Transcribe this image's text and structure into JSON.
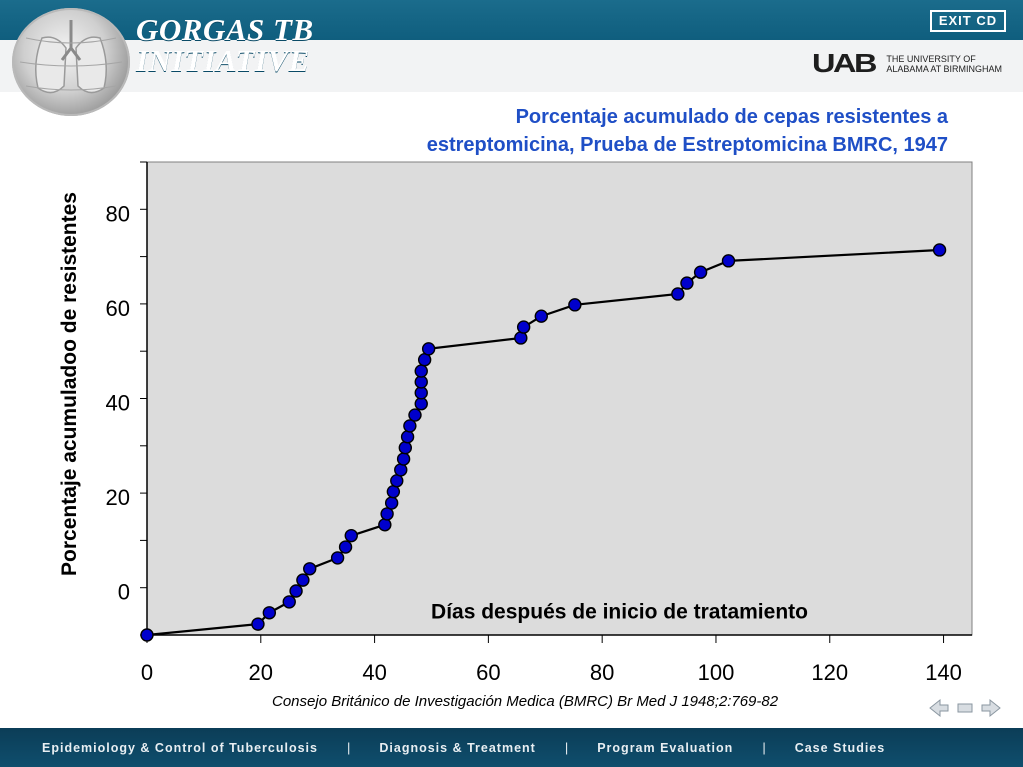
{
  "header": {
    "brand_line1": "GORGAS TB",
    "brand_line2": "INITIATIVE",
    "exit_label": "EXIT CD",
    "uab_mark": "UAB",
    "uab_name_line1": "THE UNIVERSITY OF",
    "uab_name_line2": "ALABAMA AT BIRMINGHAM"
  },
  "chart_data": {
    "type": "line",
    "title_line1": "Porcentaje acumulado de cepas resistentes a",
    "title_line2": "estreptomicina, Prueba de Estreptomicina BMRC, 1947",
    "xlabel": "Días después de inicio de tratamiento",
    "ylabel": "Porcentaje  acumuladoo de resistentes",
    "xlim": [
      0,
      145
    ],
    "ylim": [
      -7,
      93
    ],
    "x_ticks": [
      0,
      20,
      40,
      60,
      80,
      100,
      120,
      140
    ],
    "y_tick_labels": [
      0,
      20,
      40,
      60,
      80
    ],
    "grid": false,
    "marker_color": "#0000cc",
    "plot_background": "#dcdcdc",
    "series": [
      {
        "points": [
          [
            0,
            -7
          ],
          [
            19.5,
            -4.7
          ],
          [
            21.5,
            -2.3
          ],
          [
            25,
            0.0
          ],
          [
            26.2,
            2.3
          ],
          [
            27.4,
            4.6
          ],
          [
            28.6,
            7.0
          ],
          [
            33.5,
            9.3
          ],
          [
            34.9,
            11.6
          ],
          [
            35.9,
            14.0
          ],
          [
            41.8,
            16.3
          ],
          [
            42.2,
            18.6
          ],
          [
            43,
            20.9
          ],
          [
            43.3,
            23.3
          ],
          [
            43.9,
            25.6
          ],
          [
            44.6,
            27.9
          ],
          [
            45.1,
            30.2
          ],
          [
            45.4,
            32.6
          ],
          [
            45.8,
            34.9
          ],
          [
            46.2,
            37.2
          ],
          [
            47.1,
            39.5
          ],
          [
            48.2,
            41.9
          ],
          [
            48.2,
            44.2
          ],
          [
            48.2,
            46.5
          ],
          [
            48.2,
            48.8
          ],
          [
            48.8,
            51.2
          ],
          [
            49.5,
            53.5
          ],
          [
            65.7,
            55.8
          ],
          [
            66.2,
            58.1
          ],
          [
            69.3,
            60.4
          ],
          [
            75.2,
            62.8
          ],
          [
            93.3,
            65.1
          ],
          [
            94.9,
            67.4
          ],
          [
            97.3,
            69.7
          ],
          [
            102.2,
            72.1
          ],
          [
            139.3,
            74.4
          ]
        ]
      }
    ]
  },
  "citation": "Consejo Británico de Investigación Medica (BMRC) Br Med J 1948;2:769-82",
  "footer": {
    "nav": [
      "Epidemiology & Control of Tuberculosis",
      "Diagnosis & Treatment",
      "Program Evaluation",
      "Case Studies"
    ],
    "separator": "|"
  },
  "icons": [
    "lungs-globe-icon",
    "prev-arrow-icon",
    "home-arrow-icon",
    "next-arrow-icon"
  ]
}
